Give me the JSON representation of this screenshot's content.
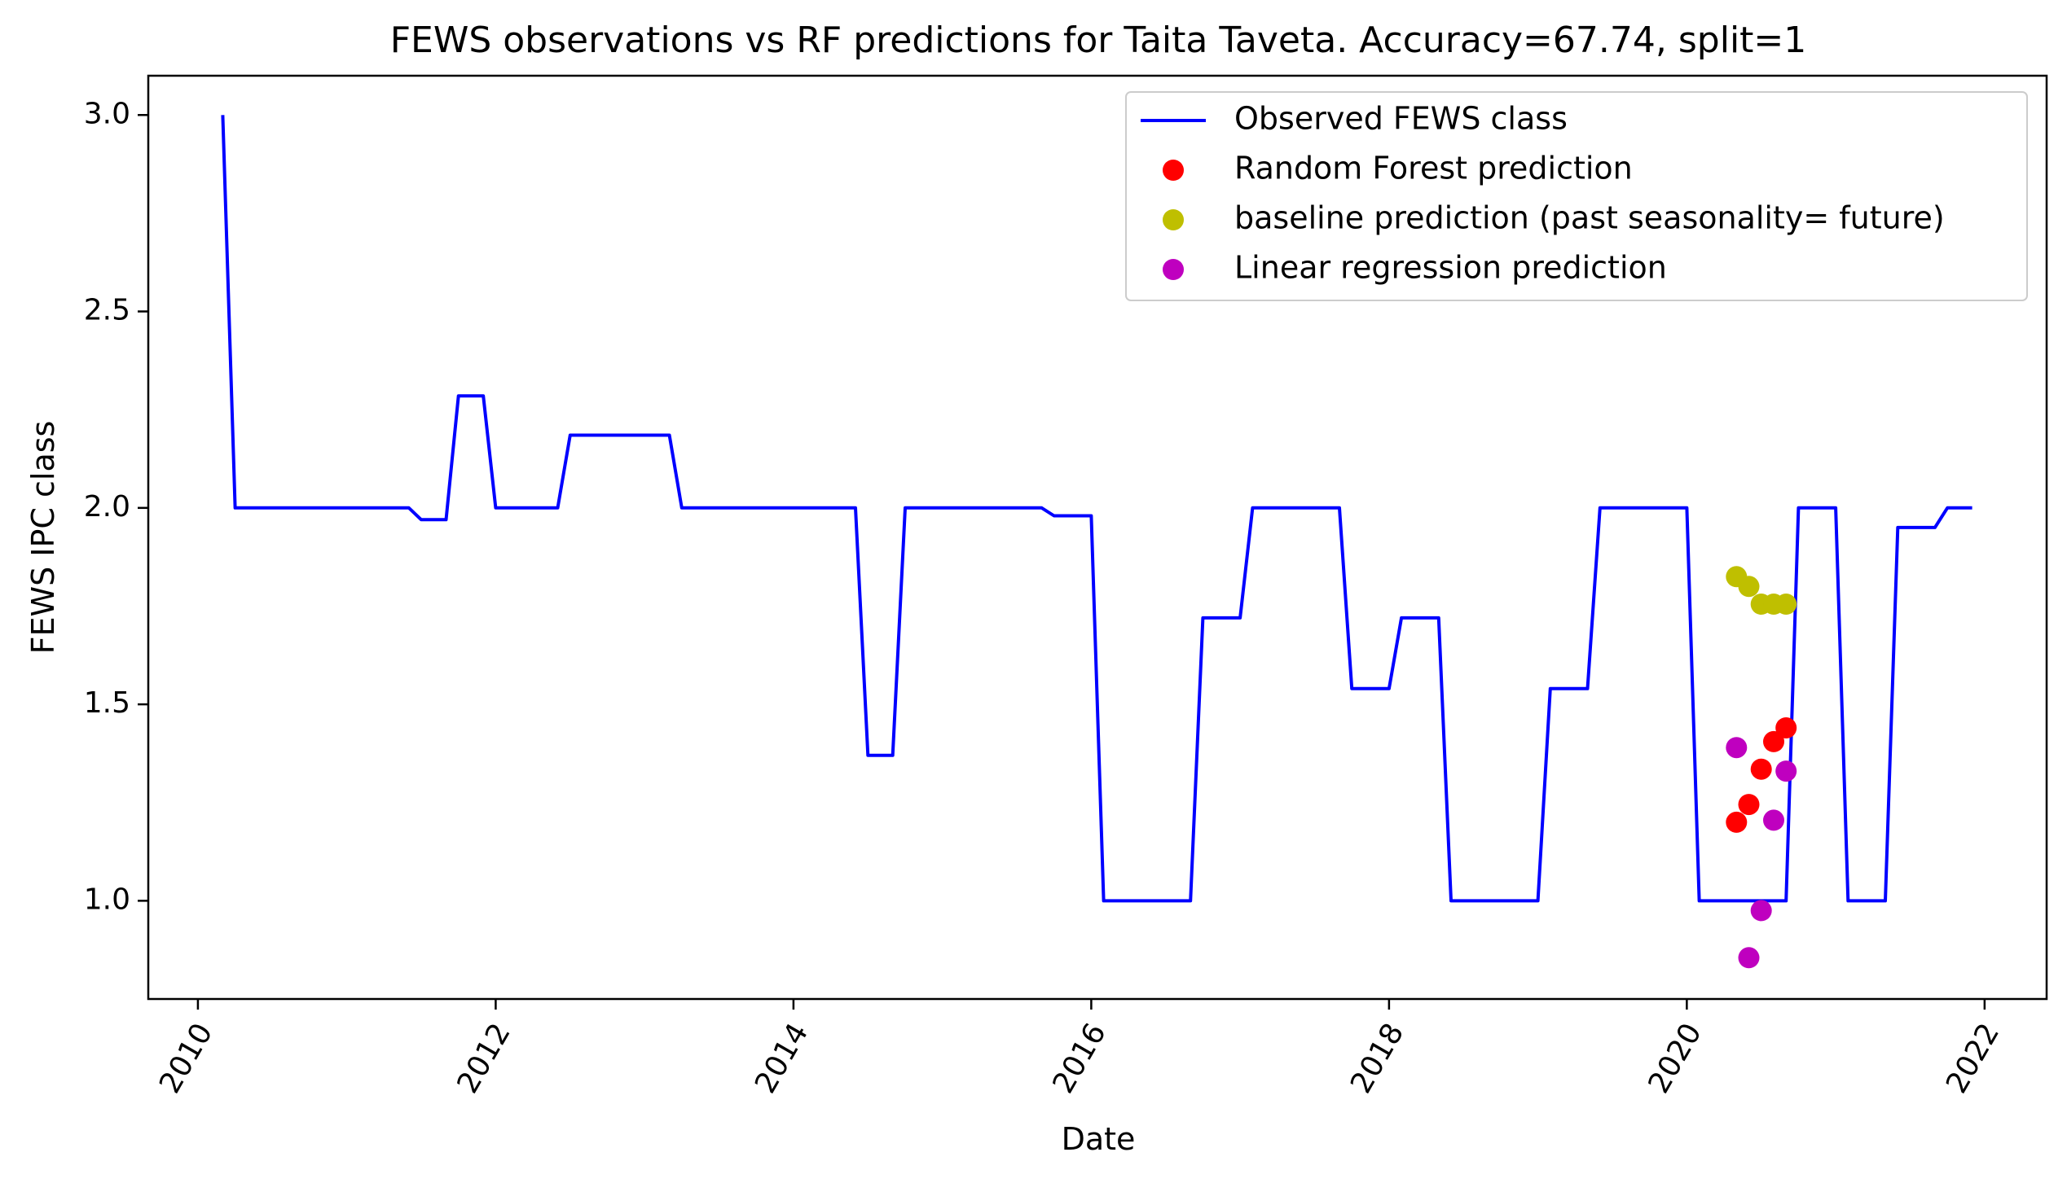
{
  "chart_data": {
    "type": "line",
    "title": "FEWS observations vs RF predictions for Taita Taveta. Accuracy=67.74, split=1",
    "xlabel": "Date",
    "ylabel": "FEWS IPC class",
    "x_ticks": [
      "2010",
      "2012",
      "2014",
      "2016",
      "2018",
      "2020",
      "2022"
    ],
    "y_ticks": [
      "1.0",
      "1.5",
      "2.0",
      "2.5",
      "3.0"
    ],
    "xlim": [
      "2009-09-01",
      "2022-06-01"
    ],
    "ylim": [
      0.75,
      3.1
    ],
    "x_tick_rotation": -60,
    "grid": false,
    "legend_position": "top-right",
    "series": [
      {
        "name": "Observed FEWS class",
        "kind": "line",
        "color": "#0000ff",
        "points": [
          [
            "2010-03-01",
            3.0
          ],
          [
            "2010-04-01",
            2.0
          ],
          [
            "2011-06-01",
            2.0
          ],
          [
            "2011-07-01",
            1.97
          ],
          [
            "2011-09-01",
            1.97
          ],
          [
            "2011-10-01",
            2.285
          ],
          [
            "2011-12-01",
            2.285
          ],
          [
            "2012-01-01",
            2.0
          ],
          [
            "2012-06-01",
            2.0
          ],
          [
            "2012-07-01",
            2.185
          ],
          [
            "2013-03-01",
            2.185
          ],
          [
            "2013-04-01",
            2.0
          ],
          [
            "2014-06-01",
            2.0
          ],
          [
            "2014-07-01",
            1.37
          ],
          [
            "2014-09-01",
            1.37
          ],
          [
            "2014-10-01",
            2.0
          ],
          [
            "2015-09-01",
            2.0
          ],
          [
            "2015-10-01",
            1.98
          ],
          [
            "2016-01-01",
            1.98
          ],
          [
            "2016-02-01",
            1.0
          ],
          [
            "2016-09-01",
            1.0
          ],
          [
            "2016-10-01",
            1.72
          ],
          [
            "2017-01-01",
            1.72
          ],
          [
            "2017-02-01",
            2.0
          ],
          [
            "2017-09-01",
            2.0
          ],
          [
            "2017-10-01",
            1.54
          ],
          [
            "2018-01-01",
            1.54
          ],
          [
            "2018-02-01",
            1.72
          ],
          [
            "2018-05-01",
            1.72
          ],
          [
            "2018-06-01",
            1.0
          ],
          [
            "2019-01-01",
            1.0
          ],
          [
            "2019-02-01",
            1.54
          ],
          [
            "2019-05-01",
            1.54
          ],
          [
            "2019-06-01",
            2.0
          ],
          [
            "2020-01-01",
            2.0
          ],
          [
            "2020-02-01",
            1.0
          ],
          [
            "2020-09-01",
            1.0
          ],
          [
            "2020-10-01",
            2.0
          ],
          [
            "2021-01-01",
            2.0
          ],
          [
            "2021-02-01",
            1.0
          ],
          [
            "2021-05-01",
            1.0
          ],
          [
            "2021-06-01",
            1.95
          ],
          [
            "2021-09-01",
            1.95
          ],
          [
            "2021-10-01",
            2.0
          ],
          [
            "2021-12-01",
            2.0
          ]
        ]
      },
      {
        "name": "Random Forest prediction",
        "kind": "scatter",
        "color": "#ff0000",
        "points": [
          [
            "2020-05-01",
            1.2
          ],
          [
            "2020-06-01",
            1.245
          ],
          [
            "2020-07-01",
            1.335
          ],
          [
            "2020-08-01",
            1.405
          ],
          [
            "2020-09-01",
            1.44
          ]
        ]
      },
      {
        "name": "baseline prediction (past seasonality= future)",
        "kind": "scatter",
        "color": "#bfbf00",
        "points": [
          [
            "2020-05-01",
            1.825
          ],
          [
            "2020-06-01",
            1.8
          ],
          [
            "2020-07-01",
            1.755
          ],
          [
            "2020-08-01",
            1.755
          ],
          [
            "2020-09-01",
            1.755
          ]
        ]
      },
      {
        "name": "Linear regression prediction",
        "kind": "scatter",
        "color": "#bf00bf",
        "points": [
          [
            "2020-05-01",
            1.39
          ],
          [
            "2020-06-01",
            0.855
          ],
          [
            "2020-07-01",
            0.975
          ],
          [
            "2020-08-01",
            1.205
          ],
          [
            "2020-09-01",
            1.33
          ]
        ]
      }
    ]
  }
}
